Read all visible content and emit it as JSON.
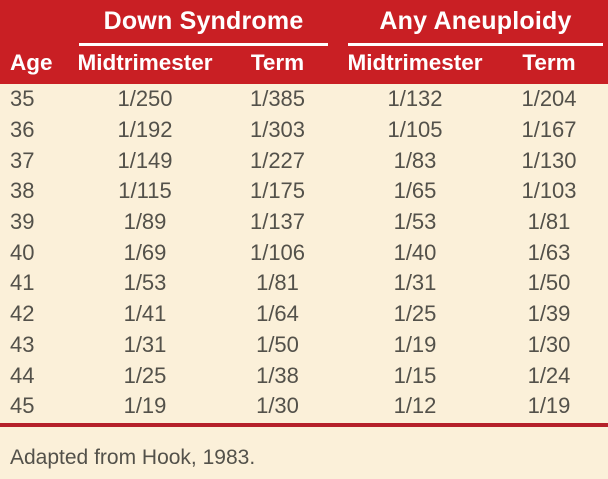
{
  "table": {
    "group_headers": [
      {
        "label": "Down Syndrome"
      },
      {
        "label": "Any Aneuploidy"
      }
    ],
    "column_headers": [
      "Age",
      "Midtrimester",
      "Term",
      "Midtrimester",
      "Term"
    ],
    "rows": [
      [
        "35",
        "1/250",
        "1/385",
        "1/132",
        "1/204"
      ],
      [
        "36",
        "1/192",
        "1/303",
        "1/105",
        "1/167"
      ],
      [
        "37",
        "1/149",
        "1/227",
        "1/83",
        "1/130"
      ],
      [
        "38",
        "1/115",
        "1/175",
        "1/65",
        "1/103"
      ],
      [
        "39",
        "1/89",
        "1/137",
        "1/53",
        "1/81"
      ],
      [
        "40",
        "1/69",
        "1/106",
        "1/40",
        "1/63"
      ],
      [
        "41",
        "1/53",
        "1/81",
        "1/31",
        "1/50"
      ],
      [
        "42",
        "1/41",
        "1/64",
        "1/25",
        "1/39"
      ],
      [
        "43",
        "1/31",
        "1/50",
        "1/19",
        "1/30"
      ],
      [
        "44",
        "1/25",
        "1/38",
        "1/15",
        "1/24"
      ],
      [
        "45",
        "1/19",
        "1/30",
        "1/12",
        "1/19"
      ]
    ],
    "footnote": "Adapted from Hook, 1983."
  },
  "colors": {
    "header_red": "#c91f24",
    "rule_red": "#b5212a",
    "background_cream": "#fbf0d9",
    "body_text": "#53514a",
    "header_text": "#ffffff"
  }
}
